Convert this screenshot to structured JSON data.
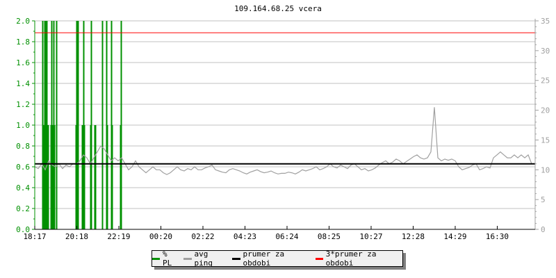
{
  "chart_data": {
    "type": "line",
    "title": "109.164.68.25 vcera",
    "x_tick_labels": [
      "18:17",
      "20:18",
      "22:19",
      "00:20",
      "02:22",
      "04:23",
      "06:24",
      "08:25",
      "10:27",
      "12:28",
      "14:29",
      "16:30"
    ],
    "x_range": [
      "18:17",
      "18:17"
    ],
    "left_axis": {
      "ylim": [
        0,
        2.0
      ],
      "ticks": [
        "0.0",
        "0.2",
        "0.4",
        "0.6",
        "0.8",
        "1.0",
        "1.2",
        "1.4",
        "1.6",
        "1.8",
        "2.0"
      ],
      "color": "#009000"
    },
    "right_axis": {
      "ylim": [
        0,
        35
      ],
      "ticks": [
        "0",
        "5",
        "10",
        "15",
        "20",
        "25",
        "30",
        "35"
      ],
      "color": "#a0a0a0"
    },
    "grid": true,
    "legend_placement": "bottom",
    "series": [
      {
        "name": "% PL",
        "axis": "left",
        "type": "bar",
        "color": "#009000",
        "points": [
          [
            "18:39",
            2
          ],
          [
            "18:41",
            1
          ],
          [
            "18:43",
            1
          ],
          [
            "18:45",
            2
          ],
          [
            "18:47",
            1
          ],
          [
            "18:49",
            2
          ],
          [
            "18:51",
            2
          ],
          [
            "18:53",
            1
          ],
          [
            "18:55",
            1
          ],
          [
            "19:03",
            1
          ],
          [
            "19:05",
            2
          ],
          [
            "19:07",
            1
          ],
          [
            "19:11",
            2
          ],
          [
            "19:13",
            1
          ],
          [
            "19:19",
            2
          ],
          [
            "20:15",
            1
          ],
          [
            "20:17",
            2
          ],
          [
            "20:19",
            1
          ],
          [
            "20:21",
            2
          ],
          [
            "20:33",
            1
          ],
          [
            "20:35",
            1
          ],
          [
            "20:37",
            2
          ],
          [
            "20:39",
            1
          ],
          [
            "20:57",
            1
          ],
          [
            "20:59",
            2
          ],
          [
            "21:09",
            1
          ],
          [
            "21:11",
            1
          ],
          [
            "21:31",
            2
          ],
          [
            "21:43",
            2
          ],
          [
            "21:45",
            1
          ],
          [
            "21:57",
            2
          ],
          [
            "21:59",
            1
          ],
          [
            "22:23",
            1
          ],
          [
            "22:25",
            2
          ]
        ]
      },
      {
        "name": "avg ping",
        "axis": "right",
        "type": "line",
        "color": "#a0a0a0",
        "start": "18:17",
        "step_minutes": 10,
        "values": [
          10.5,
          10.2,
          11,
          10,
          11.5,
          10.8,
          10.5,
          11,
          10.2,
          10.8,
          10.5,
          11,
          11,
          11.5,
          12.5,
          12,
          11,
          12,
          13,
          14,
          13.5,
          12.5,
          11.5,
          12,
          11.5,
          12,
          11,
          10,
          10.5,
          11.5,
          10.5,
          10,
          9.5,
          10,
          10.5,
          10,
          10,
          9.5,
          9.2,
          9.5,
          10,
          10.5,
          10,
          9.8,
          10.2,
          10,
          10.5,
          10,
          10,
          10.3,
          10.5,
          10.8,
          10,
          9.8,
          9.6,
          9.5,
          10,
          10.2,
          10,
          9.8,
          9.5,
          9.3,
          9.6,
          9.8,
          10,
          9.7,
          9.5,
          9.6,
          9.8,
          9.5,
          9.3,
          9.4,
          9.4,
          9.6,
          9.5,
          9.3,
          9.6,
          10,
          9.8,
          10,
          10.2,
          10.5,
          10,
          10.2,
          10.5,
          11,
          10.5,
          10.3,
          10.8,
          10.5,
          10.2,
          10.8,
          11,
          10.5,
          10,
          10.2,
          9.8,
          10,
          10.3,
          10.8,
          11.2,
          11.5,
          11,
          11.3,
          11.8,
          11.5,
          11,
          11.4,
          11.8,
          12.2,
          12.5,
          12,
          11.8,
          12,
          13,
          20.5,
          12,
          11.5,
          11.8,
          11.6,
          11.8,
          11.5,
          10.5,
          10,
          10.2,
          10.4,
          10.8,
          11,
          10,
          10.2,
          10.5,
          10.3,
          12,
          12.5,
          13,
          12.5,
          12,
          12,
          12.5,
          12,
          12.5,
          12,
          12.5,
          11
        ]
      },
      {
        "name": "prumer za obdobi",
        "axis": "right",
        "type": "hline",
        "color": "#000000",
        "value": 11.0
      },
      {
        "name": "3*prumer za obdobi",
        "axis": "right",
        "type": "hline",
        "color": "#ff0000",
        "value": 33.0
      }
    ]
  }
}
